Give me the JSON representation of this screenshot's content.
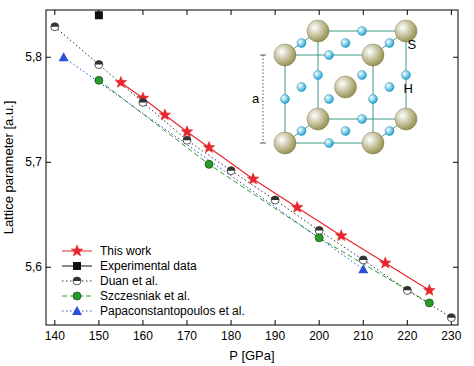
{
  "chart_data": {
    "type": "line",
    "x_label": "P [GPa]",
    "y_label": "Lattice parameter [a.u.]",
    "xlim": [
      138,
      231.5
    ],
    "ylim": [
      5.545,
      5.845
    ],
    "xticks": [
      140,
      150,
      160,
      170,
      180,
      190,
      200,
      210,
      220,
      230
    ],
    "yticks": [
      {
        "value": 5.6,
        "label": "5,6"
      },
      {
        "value": 5.7,
        "label": "5,7"
      },
      {
        "value": 5.8,
        "label": "5,8"
      }
    ],
    "grid": false,
    "legend": "lower left",
    "series": [
      {
        "name": "This work",
        "color": "#e8262c",
        "marker": "star",
        "line_style": "solid",
        "x": [
          155,
          160,
          165,
          170,
          175,
          185,
          195,
          205,
          215,
          225
        ],
        "values": [
          5.776,
          5.761,
          5.745,
          5.729,
          5.714,
          5.684,
          5.657,
          5.63,
          5.604,
          5.578
        ]
      },
      {
        "name": "Experimental data",
        "color": "#111111",
        "marker": "square",
        "line_style": "solid",
        "x": [
          150
        ],
        "values": [
          5.84
        ]
      },
      {
        "name": "Duan et al.",
        "color": "#333333",
        "marker": "half-circle",
        "line_style": "dotted",
        "x": [
          140,
          150,
          160,
          170,
          180,
          190,
          200,
          210,
          220,
          230
        ],
        "values": [
          5.829,
          5.793,
          5.757,
          5.721,
          5.692,
          5.664,
          5.635,
          5.607,
          5.578,
          5.552
        ]
      },
      {
        "name": "Szczesniak et al.",
        "color": "#2a9a2a",
        "marker": "circle",
        "line_style": "dashed",
        "x": [
          150,
          175,
          200,
          225
        ],
        "values": [
          5.778,
          5.698,
          5.628,
          5.566
        ]
      },
      {
        "name": "Papaconstantopoulos et al.",
        "color": "#2b4fd8",
        "marker": "triangle",
        "line_style": "dotted",
        "x": [
          142,
          210
        ],
        "values": [
          5.8,
          5.598
        ]
      }
    ]
  },
  "inset": {
    "atoms": [
      {
        "label": "S",
        "color": "#9a9455"
      },
      {
        "label": "H",
        "color": "#1fa8d8"
      }
    ],
    "edge_label": "a"
  }
}
